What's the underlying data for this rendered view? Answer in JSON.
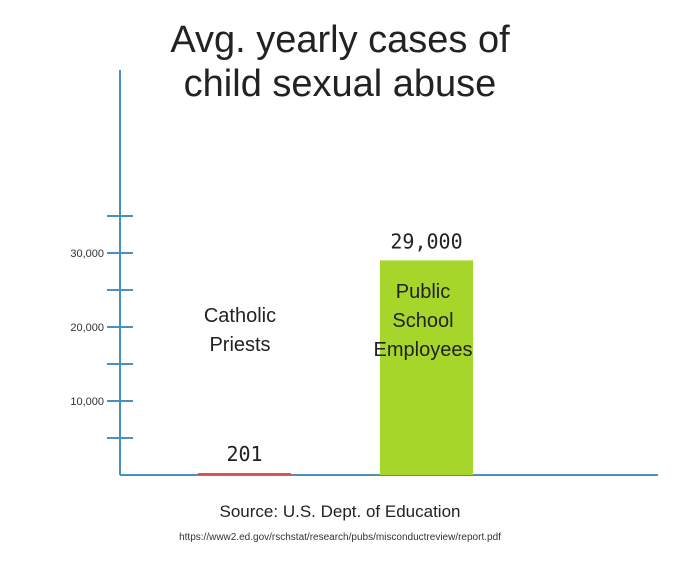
{
  "chart_data": {
    "type": "bar",
    "title": "Avg. yearly cases of child sexual abuse",
    "title_lines": [
      "Avg. yearly cases of",
      "child sexual abuse"
    ],
    "categories": [
      "Catholic Priests",
      "Public School Employees"
    ],
    "category_label_lines": [
      [
        "Catholic",
        "Priests"
      ],
      [
        "Public",
        "School",
        "Employees"
      ]
    ],
    "values": [
      201,
      29000
    ],
    "value_labels": [
      "201",
      "29,000"
    ],
    "bar_colors": [
      "#d9534f",
      "#a6d62a"
    ],
    "ylim": [
      0,
      35000
    ],
    "y_ticks": [
      10000,
      20000,
      30000
    ],
    "y_tick_labels": [
      "10,000",
      "20,000",
      "30,000"
    ],
    "y_minor_step": 5000,
    "axis_color": "#4a8fc0",
    "grid": false,
    "xlabel": "",
    "ylabel": ""
  },
  "source": "Source: U.S. Dept. of Education",
  "url": "https://www2.ed.gov/rschstat/research/pubs/misconductreview/report.pdf"
}
